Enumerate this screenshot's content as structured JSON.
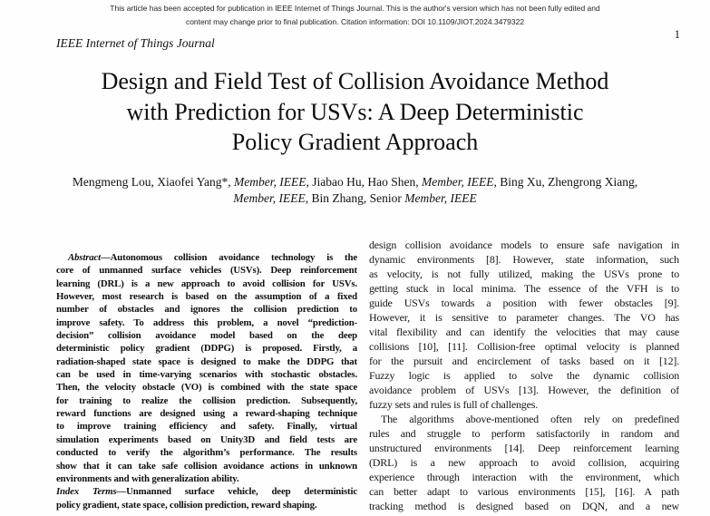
{
  "banner": {
    "lines": [
      "This article has been accepted for publication in IEEE Internet of Things Journal. This is the author's version which has not been fully edited and",
      "content may change prior to final publication. Citation information: DOI 10.1109/JIOT.2024.3479322"
    ]
  },
  "header": {
    "journal": "IEEE Internet of Things Journal",
    "page_number": "1"
  },
  "title": {
    "lines": [
      "Design and Field Test of Collision Avoidance Method",
      "with Prediction for USVs: A Deep Deterministic",
      "Policy Gradient Approach"
    ]
  },
  "authors": {
    "line1": [
      {
        "t": "Mengmeng Lou, Xiaofei Yang*, "
      },
      {
        "t": "Member, IEEE",
        "i": true
      },
      {
        "t": ", Jiabao Hu, Hao Shen, "
      },
      {
        "t": "Member, IEEE",
        "i": true
      },
      {
        "t": ", Bing Xu, Zhengrong Xiang,"
      }
    ],
    "line2": [
      {
        "t": "Member, IEEE",
        "i": true
      },
      {
        "t": ", Bin Zhang, Senior "
      },
      {
        "t": "Member, IEEE",
        "i": true
      }
    ]
  },
  "left_column": {
    "paragraphs": [
      {
        "lead": "Abstract—",
        "indent": true,
        "justify_last": false,
        "lines": [
          "Autonomous collision avoidance technology is the",
          "core of unmanned surface vehicles (USVs). Deep reinforcement",
          "learning (DRL) is a new approach to avoid collision for USVs.",
          "However, most research is based on the assumption of a fixed",
          "number of obstacles and ignores the collision prediction to",
          "improve safety. To address this problem, a novel “prediction-",
          "decision” collision avoidance model based on the deep",
          "deterministic policy gradient (DDPG) is proposed. Firstly, a",
          "radiation-shaped state space is designed to make the DDPG that",
          "can be used in time-varying scenarios with stochastic obstacles.",
          "Then, the velocity obstacle (VO) is combined with the state space",
          "for training to realize the collision prediction. Subsequently,",
          "reward functions are designed using a reward-shaping technique",
          "to improve training efficiency and safety. Finally, virtual",
          "simulation experiments based on Unity3D and field tests are",
          "conducted to verify the algorithm’s performance. The results",
          "show that it can take safe collision avoidance actions in unknown",
          "environments and with generalization ability."
        ]
      },
      {
        "lead": "Index Terms—",
        "indent": false,
        "justify_last": false,
        "lines": [
          "Unmanned surface vehicle, deep deterministic",
          "policy gradient, state space, collision prediction, reward shaping."
        ]
      }
    ]
  },
  "right_column": {
    "paragraphs": [
      {
        "indent": false,
        "justify_last": false,
        "lines": [
          "design collision avoidance models to ensure safe navigation in",
          "dynamic environments [8]. However, state information, such",
          "as velocity, is not fully utilized, making the USVs prone to",
          "getting stuck in local minima. The essence of the VFH is to",
          "guide USVs towards a position with fewer obstacles [9].",
          "However, it is sensitive to parameter changes. The VO has",
          "vital flexibility and can identify the velocities that may cause",
          "collisions [10], [11]. Collision-free optimal velocity is planned",
          "for the pursuit and encirclement of tasks based on it [12].",
          "Fuzzy logic is applied to solve the dynamic collision",
          "avoidance problem of USVs [13]. However, the definition of",
          "fuzzy sets and rules is full of challenges."
        ]
      },
      {
        "indent": true,
        "justify_last": true,
        "lines": [
          "The algorithms above-mentioned often rely on predefined",
          "rules and struggle to perform satisfactorily in random and",
          "unstructured environments [14]. Deep reinforcement learning",
          "(DRL) is a new approach to avoid collision, acquiring",
          "experience through interaction with the environment, which",
          "can better adapt to various environments [15], [16]. A path",
          "tracking method is designed based on DQN, and a new"
        ]
      }
    ]
  }
}
